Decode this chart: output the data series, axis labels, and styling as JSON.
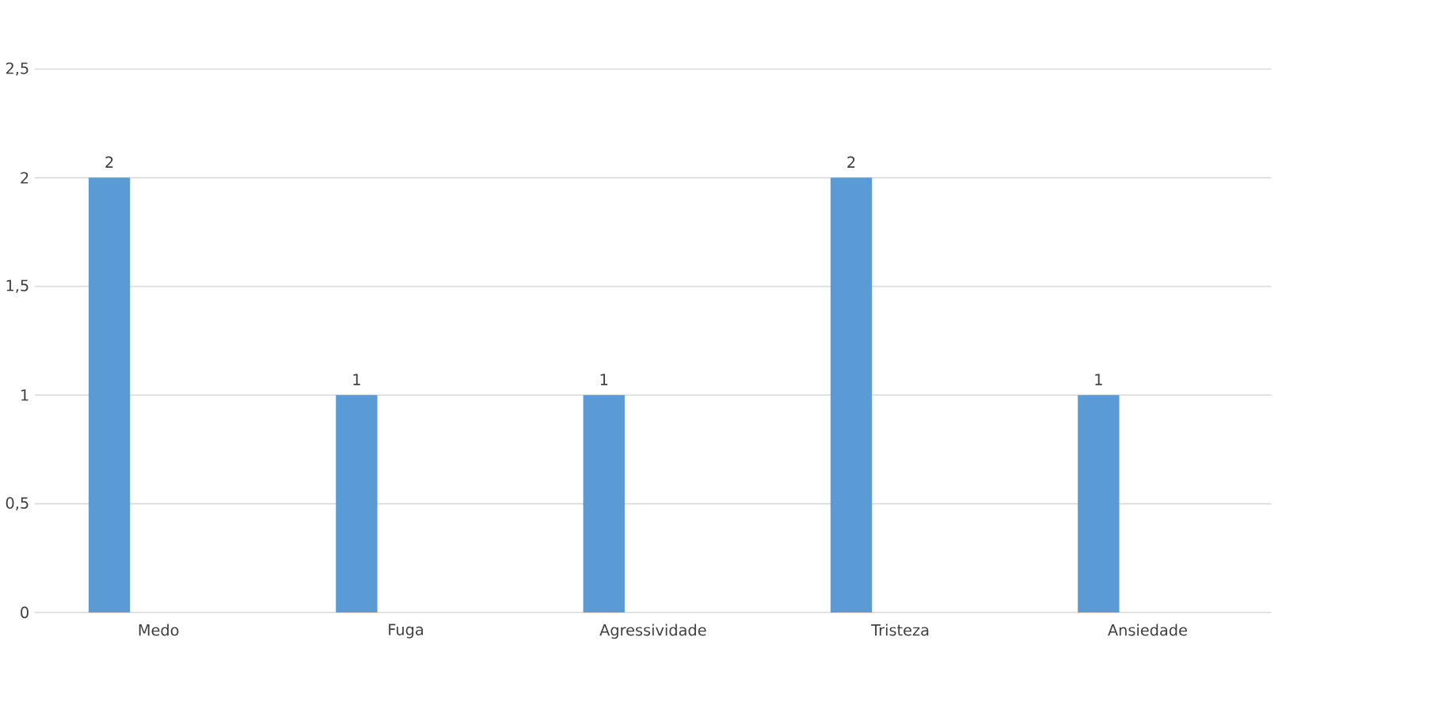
{
  "chart_data": {
    "type": "bar",
    "categories": [
      "Medo",
      "Fuga",
      "Agressividade",
      "Tristeza",
      "Ansiedade"
    ],
    "values": [
      2,
      1,
      1,
      2,
      1
    ],
    "color": "#5b9bd5",
    "value_labels": [
      "2",
      "1",
      "1",
      "2",
      "1"
    ],
    "ylim": [
      0,
      2.5
    ],
    "yticks": [
      0,
      {
        "value": 0.5,
        "label": "0,5"
      },
      1,
      {
        "value": 1.5,
        "label": "1,5"
      },
      2,
      {
        "value": 2.5,
        "label": "2,5"
      }
    ],
    "grid": "y"
  }
}
